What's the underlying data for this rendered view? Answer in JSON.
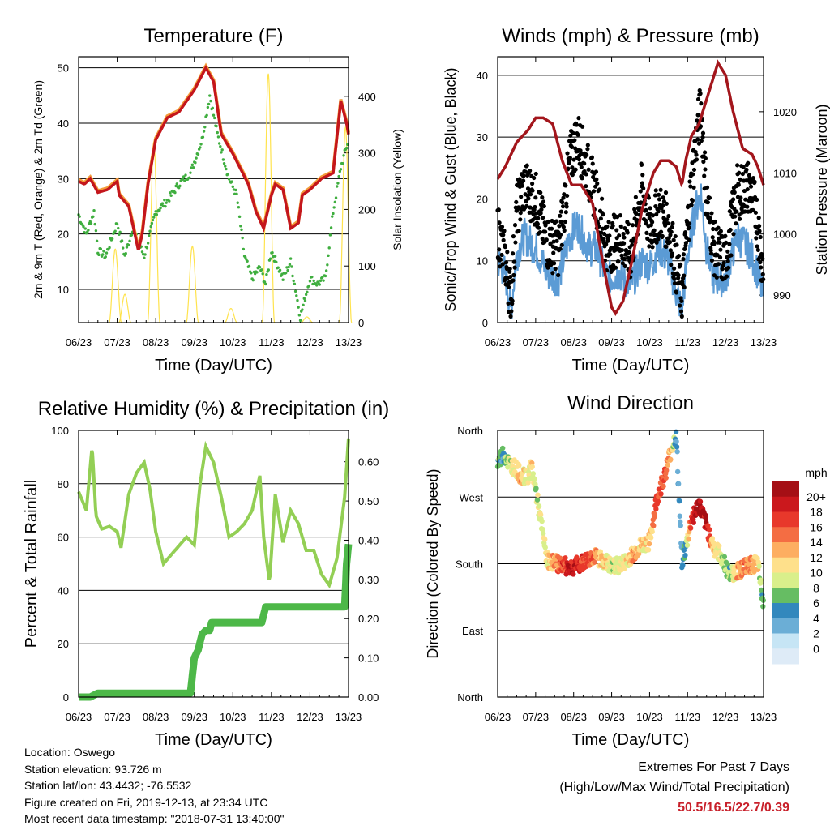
{
  "colors": {
    "temp_2m": "#c4161c",
    "temp_9m": "#f39c3a",
    "dewpoint": "#3fae3f",
    "insolation": "#ffe34d",
    "wind_sonic": "#5b9bd5",
    "gust": "#000000",
    "pressure": "#a3161c",
    "rh": "#93cf55",
    "precip": "#4db848",
    "extremes": "#c8202a"
  },
  "chart_data": [
    {
      "type": "line",
      "title": "Temperature (F)",
      "xlabel": "Time (Day/UTC)",
      "ylabel": "2m & 9m T (Red, Orange) & 2m Td (Green)",
      "y2label": "Solar Insolation (Yellow)",
      "xticks": [
        "06/23",
        "07/23",
        "08/23",
        "09/23",
        "10/23",
        "11/23",
        "12/23",
        "13/23"
      ],
      "xlim": [
        0,
        7
      ],
      "ylim": [
        4,
        52
      ],
      "yticks": [
        10,
        20,
        30,
        40,
        50
      ],
      "y2lim": [
        0,
        470
      ],
      "y2ticks": [
        0,
        100,
        200,
        300,
        400
      ],
      "grid": "horizontal",
      "series": [
        {
          "name": "2m T",
          "x": [
            0,
            0.15,
            0.3,
            0.5,
            0.75,
            1.0,
            1.05,
            1.3,
            1.55,
            1.65,
            1.8,
            2.0,
            2.3,
            2.6,
            3.0,
            3.3,
            3.5,
            3.7,
            4.0,
            4.4,
            4.6,
            4.8,
            5.0,
            5.1,
            5.3,
            5.5,
            5.7,
            5.8,
            6.0,
            6.3,
            6.6,
            6.8,
            6.95,
            7.0
          ],
          "y": [
            29.5,
            29,
            30,
            27.5,
            28,
            29.5,
            27,
            25,
            17,
            20,
            29,
            37,
            41,
            42,
            46,
            50,
            47.5,
            38,
            34.5,
            29,
            24,
            21,
            27,
            29,
            28,
            21,
            22,
            27,
            28,
            30,
            31,
            44,
            40,
            38
          ]
        },
        {
          "name": "9m T",
          "x": [
            0,
            0.15,
            0.3,
            0.5,
            0.75,
            1.0,
            1.05,
            1.3,
            1.55,
            1.65,
            1.8,
            2.0,
            2.3,
            2.6,
            3.0,
            3.3,
            3.5,
            3.7,
            4.0,
            4.4,
            4.6,
            4.8,
            5.0,
            5.1,
            5.3,
            5.5,
            5.7,
            5.8,
            6.0,
            6.3,
            6.6,
            6.8,
            6.95,
            7.0
          ],
          "y": [
            29.8,
            29.3,
            30.3,
            27.8,
            28.3,
            29.8,
            27.3,
            25.3,
            17.4,
            20.4,
            29.3,
            37.3,
            41.3,
            42.3,
            46.3,
            50.3,
            47.8,
            38.3,
            34.8,
            29.3,
            24.3,
            21.4,
            27.3,
            29.3,
            28.3,
            21.3,
            22.3,
            27.3,
            28.3,
            30.3,
            31.3,
            44.3,
            40.3,
            38.3
          ]
        },
        {
          "name": "2m Td",
          "x": [
            0,
            0.2,
            0.4,
            0.5,
            0.7,
            1.0,
            1.2,
            1.4,
            1.7,
            2.0,
            2.3,
            2.6,
            2.9,
            3.2,
            3.4,
            3.6,
            3.9,
            4.1,
            4.3,
            4.5,
            4.7,
            4.85,
            5.0,
            5.3,
            5.5,
            5.75,
            6.0,
            6.2,
            6.4,
            6.6,
            6.8,
            7.0
          ],
          "y": [
            23.5,
            20,
            24,
            17,
            16,
            22,
            16,
            21,
            16,
            24,
            26,
            29,
            31,
            37,
            45,
            38,
            30,
            27,
            16,
            12,
            14,
            11,
            17,
            12,
            15,
            5,
            12,
            11,
            12,
            24,
            32,
            37
          ]
        }
      ],
      "insolation": {
        "name": "Solar Insolation",
        "peaks": [
          {
            "x": 0.95,
            "y": 130
          },
          {
            "x": 1.2,
            "y": 50
          },
          {
            "x": 1.95,
            "y": 320
          },
          {
            "x": 2.95,
            "y": 135
          },
          {
            "x": 3.95,
            "y": 25
          },
          {
            "x": 4.92,
            "y": 440
          },
          {
            "x": 5.92,
            "y": 10
          },
          {
            "x": 6.92,
            "y": 345
          }
        ],
        "halfwidth": 0.16
      }
    },
    {
      "type": "scatter",
      "title": "Winds (mph) & Pressure (mb)",
      "xlabel": "Time (Day/UTC)",
      "ylabel": "Sonic/Prop Wind & Gust (Blue, Black)",
      "y2label": "Station Pressure (Maroon)",
      "xticks": [
        "06/23",
        "07/23",
        "08/23",
        "09/23",
        "10/23",
        "11/23",
        "12/23",
        "13/23"
      ],
      "xlim": [
        0,
        7
      ],
      "ylim": [
        0,
        43
      ],
      "yticks": [
        0,
        10,
        20,
        30,
        40
      ],
      "y2lim": [
        985.5,
        1029
      ],
      "y2ticks": [
        990,
        1000,
        1010,
        1020
      ],
      "grid": "horizontal",
      "wind": {
        "name": "Sonic/Prop Wind",
        "x": [
          0,
          0.2,
          0.35,
          0.5,
          0.7,
          1.0,
          1.3,
          1.6,
          1.9,
          2.1,
          2.4,
          2.6,
          2.9,
          3.2,
          3.5,
          3.8,
          4.0,
          4.25,
          4.5,
          4.7,
          4.85,
          5.0,
          5.2,
          5.35,
          5.5,
          5.7,
          6.0,
          6.3,
          6.6,
          6.8,
          7.0
        ],
        "y": [
          10,
          8,
          2,
          11,
          14,
          12,
          8,
          7,
          14,
          16,
          12,
          12,
          7,
          8,
          6,
          10,
          9,
          12,
          10,
          5,
          2,
          11,
          18,
          21,
          12,
          7,
          7,
          14,
          12,
          9,
          4
        ]
      },
      "gust": {
        "name": "Gust",
        "x": [
          0,
          0.2,
          0.35,
          0.5,
          0.7,
          1.0,
          1.3,
          1.6,
          1.9,
          2.1,
          2.4,
          2.6,
          2.9,
          3.2,
          3.5,
          3.8,
          4.0,
          4.25,
          4.5,
          4.7,
          4.85,
          5.0,
          5.2,
          5.35,
          5.5,
          5.7,
          6.0,
          6.3,
          6.6,
          6.8,
          7.0
        ],
        "y": [
          15,
          10,
          4,
          18,
          22,
          20,
          13,
          12,
          26,
          30,
          24,
          20,
          12,
          14,
          11,
          22,
          15,
          18,
          16,
          9,
          4,
          16,
          28,
          35,
          20,
          12,
          10,
          21,
          22,
          18,
          8
        ]
      },
      "pressure": {
        "name": "Station Pressure",
        "x": [
          0,
          0.2,
          0.5,
          0.8,
          1.0,
          1.2,
          1.45,
          1.7,
          1.95,
          2.2,
          2.5,
          2.75,
          3.0,
          3.1,
          3.3,
          3.55,
          3.8,
          4.1,
          4.3,
          4.5,
          4.7,
          4.85,
          4.95,
          5.1,
          5.3,
          5.5,
          5.8,
          6.0,
          6.2,
          6.45,
          6.7,
          6.85,
          7.0
        ],
        "y": [
          1009,
          1011,
          1015,
          1017,
          1019,
          1019,
          1018,
          1012,
          1008,
          1008,
          1005,
          996,
          988,
          987,
          989,
          996,
          1004,
          1010,
          1012,
          1012,
          1011,
          1008,
          1012,
          1016,
          1018,
          1022,
          1028,
          1026,
          1020,
          1014,
          1013,
          1011,
          1008
        ]
      }
    },
    {
      "type": "line",
      "title": "Relative Humidity (%) & Precipitation (in)",
      "xlabel": "Time (Day/UTC)",
      "ylabel": "Percent & Total Rainfall",
      "xticks": [
        "06/23",
        "07/23",
        "08/23",
        "09/23",
        "10/23",
        "11/23",
        "12/23",
        "13/23"
      ],
      "xlim": [
        0,
        7
      ],
      "ylim": [
        0,
        100
      ],
      "yticks": [
        0,
        20,
        40,
        60,
        80,
        100
      ],
      "y2lim": [
        0,
        0.68
      ],
      "y2ticks": [
        "0.00",
        "0.10",
        "0.20",
        "0.30",
        "0.40",
        "0.50",
        "0.60"
      ],
      "grid": "horizontal",
      "series": [
        {
          "name": "Relative Humidity",
          "x": [
            0,
            0.2,
            0.35,
            0.45,
            0.6,
            0.8,
            1.0,
            1.1,
            1.3,
            1.5,
            1.7,
            1.85,
            2.0,
            2.2,
            2.5,
            2.8,
            3.0,
            3.15,
            3.3,
            3.5,
            3.7,
            3.9,
            4.1,
            4.3,
            4.5,
            4.7,
            4.8,
            4.95,
            5.1,
            5.3,
            5.5,
            5.7,
            5.9,
            6.1,
            6.3,
            6.5,
            6.7,
            6.9,
            7.0
          ],
          "y": [
            77,
            70,
            94,
            68,
            63,
            64,
            62,
            56,
            76,
            84,
            88,
            78,
            62,
            50,
            55,
            60,
            57,
            80,
            94,
            88,
            75,
            60,
            62,
            65,
            70,
            83,
            60,
            43,
            76,
            58,
            70,
            65,
            55,
            55,
            46,
            42,
            52,
            75,
            97
          ]
        },
        {
          "name": "Total Rainfall",
          "x": [
            0,
            0.3,
            0.5,
            1.0,
            2.0,
            2.9,
            3.0,
            3.1,
            3.2,
            3.3,
            3.4,
            3.45,
            3.55,
            3.7,
            4.0,
            4.5,
            4.75,
            4.8,
            4.85,
            5.0,
            6.0,
            6.9,
            6.95,
            7.0
          ],
          "y": [
            0,
            0,
            0.01,
            0.01,
            0.01,
            0.01,
            0.1,
            0.12,
            0.16,
            0.17,
            0.17,
            0.19,
            0.19,
            0.19,
            0.19,
            0.19,
            0.19,
            0.21,
            0.23,
            0.23,
            0.23,
            0.23,
            0.34,
            0.39
          ]
        }
      ]
    },
    {
      "type": "scatter",
      "title": "Wind Direction",
      "xlabel": "Time (Day/UTC)",
      "ylabel": "Direction (Colored By Speed)",
      "xticks": [
        "06/23",
        "07/23",
        "08/23",
        "09/23",
        "10/23",
        "11/23",
        "12/23",
        "13/23"
      ],
      "xlim": [
        0,
        7
      ],
      "ylim": [
        0,
        360
      ],
      "yticks": [
        "North",
        "East",
        "South",
        "West",
        "North"
      ],
      "grid": "horizontal",
      "colorbar": {
        "title": "mph",
        "labels": [
          "20+",
          "18",
          "16",
          "14",
          "12",
          "10",
          "8",
          "6",
          "4",
          "2",
          "0"
        ],
        "colors": [
          "#a50f15",
          "#cb181d",
          "#e8382b",
          "#f46d43",
          "#fdae61",
          "#fee08b",
          "#d9ef8b",
          "#66bd63",
          "#3288bd",
          "#6baed6",
          "#c6e5f5",
          "#deebf7"
        ]
      },
      "points": {
        "x": [
          0,
          0.15,
          0.3,
          0.45,
          0.6,
          0.75,
          0.9,
          1.0,
          1.3,
          1.6,
          1.9,
          2.2,
          2.5,
          2.8,
          3.0,
          3.3,
          3.6,
          3.8,
          4.0,
          4.2,
          4.4,
          4.55,
          4.7,
          4.85,
          4.95,
          5.1,
          5.3,
          5.5,
          5.7,
          5.9,
          6.1,
          6.3,
          6.5,
          6.7,
          6.85,
          7.0
        ],
        "dir": [
          315,
          330,
          315,
          310,
          300,
          295,
          310,
          280,
          185,
          180,
          175,
          180,
          190,
          185,
          175,
          180,
          195,
          205,
          210,
          270,
          300,
          330,
          355,
          185,
          200,
          240,
          260,
          230,
          200,
          190,
          165,
          170,
          175,
          178,
          180,
          120
        ],
        "speed": [
          6,
          4,
          8,
          10,
          12,
          9,
          10,
          8,
          9,
          14,
          18,
          16,
          14,
          10,
          8,
          9,
          12,
          10,
          10,
          16,
          14,
          12,
          4,
          3,
          5,
          16,
          20,
          18,
          10,
          8,
          6,
          12,
          14,
          13,
          10,
          4
        ]
      }
    }
  ],
  "footer": {
    "location": "Location: Oswego",
    "elevation": "Station elevation: 93.726 m",
    "latlon": "Station lat/lon: 43.4432; -76.5532",
    "created": "Figure created on Fri, 2019-12-13, at 23:34 UTC",
    "recent": "Most recent data timestamp: \"2018-07-31 13:40:00\"",
    "extremes_title": "Extremes For Past 7 Days",
    "extremes_subtitle": "(High/Low/Max Wind/Total Precipitation)",
    "extremes_values": "50.5/16.5/22.7/0.39"
  }
}
